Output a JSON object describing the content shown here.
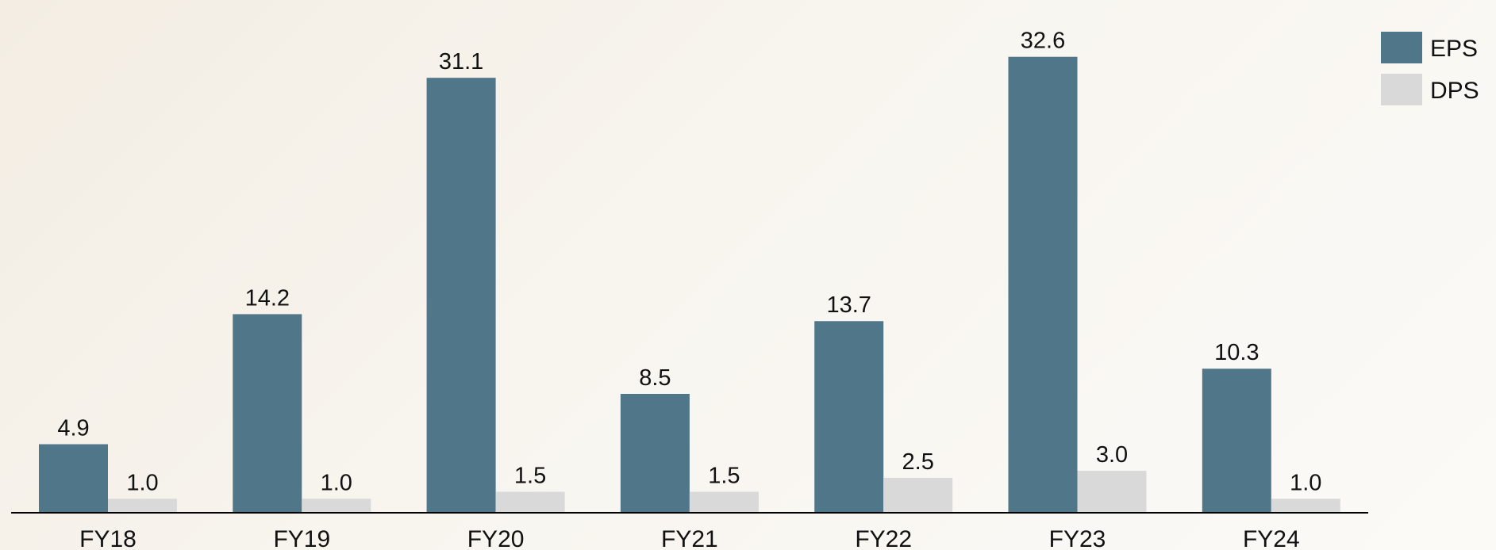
{
  "chart_data": {
    "type": "bar",
    "title": "",
    "xlabel": "",
    "ylabel": "",
    "categories": [
      "FY18",
      "FY19",
      "FY20",
      "FY21",
      "FY22",
      "FY23",
      "FY24"
    ],
    "series": [
      {
        "name": "EPS",
        "values": [
          4.9,
          14.2,
          31.1,
          8.5,
          13.7,
          32.6,
          10.3
        ],
        "color": "#507689"
      },
      {
        "name": "DPS",
        "values": [
          1.0,
          1.0,
          1.5,
          1.5,
          2.5,
          3.0,
          1.0
        ],
        "color": "#d9d9d9"
      }
    ],
    "value_labels": {
      "EPS": [
        "4.9",
        "14.2",
        "31.1",
        "8.5",
        "13.7",
        "32.6",
        "10.3"
      ],
      "DPS": [
        "1.0",
        "1.0",
        "1.5",
        "1.5",
        "2.5",
        "3.0",
        "1.0"
      ]
    },
    "ylim": [
      0,
      34
    ],
    "grid": false,
    "legend": "top-right"
  }
}
